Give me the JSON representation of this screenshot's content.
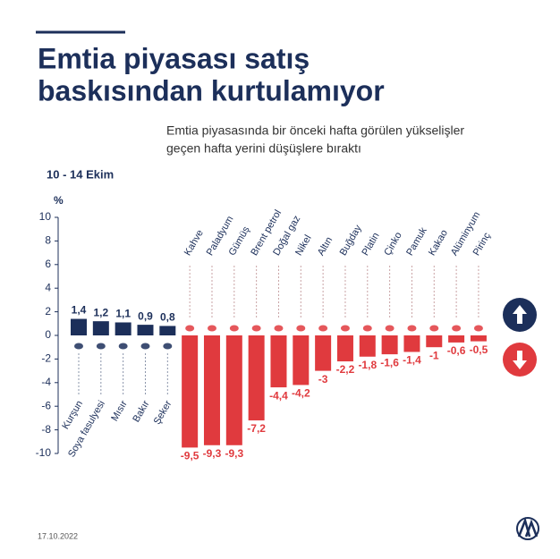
{
  "chart_data": {
    "type": "bar",
    "title": [
      "Emtia piyasası satış",
      "baskısından kurtulamıyor"
    ],
    "subtitle": [
      "Emtia piyasasında bir önceki hafta görülen yükselişler",
      "geçen hafta yerini düşüşlere bıraktı"
    ],
    "period": "10 - 14 Ekim",
    "ylabel": "%",
    "date": "17.10.2022",
    "categories": [
      "Kurşun",
      "Soya fasulyesi",
      "Mısır",
      "Bakır",
      "Şeker",
      "Kahve",
      "Paladyum",
      "Gümüş",
      "Brent petrol",
      "Doğal gaz",
      "Nikel",
      "Altın",
      "Buğday",
      "Platin",
      "Çinko",
      "Pamuk",
      "Kakao",
      "Alüminyum",
      "Pirinç"
    ],
    "values": [
      1.4,
      1.2,
      1.1,
      0.9,
      0.8,
      -9.5,
      -9.3,
      -9.3,
      -7.2,
      -4.4,
      -4.2,
      -3,
      -2.2,
      -1.8,
      -1.6,
      -1.4,
      -1,
      -0.6,
      -0.5
    ],
    "value_labels": [
      "1,4",
      "1,2",
      "1,1",
      "0,9",
      "0,8",
      "-9,5",
      "-9,3",
      "-9,3",
      "-7,2",
      "-4,4",
      "-4,2",
      "-3",
      "-2,2",
      "-1,8",
      "-1,6",
      "-1,4",
      "-1",
      "-0,6",
      "-0,5"
    ],
    "colors": {
      "positive": "#1c2f5a",
      "negative": "#e03a3e"
    },
    "ylim": [
      -10,
      10
    ],
    "yticks": [
      10,
      8,
      6,
      4,
      2,
      0,
      -2,
      -4,
      -6,
      -8,
      -10
    ]
  }
}
